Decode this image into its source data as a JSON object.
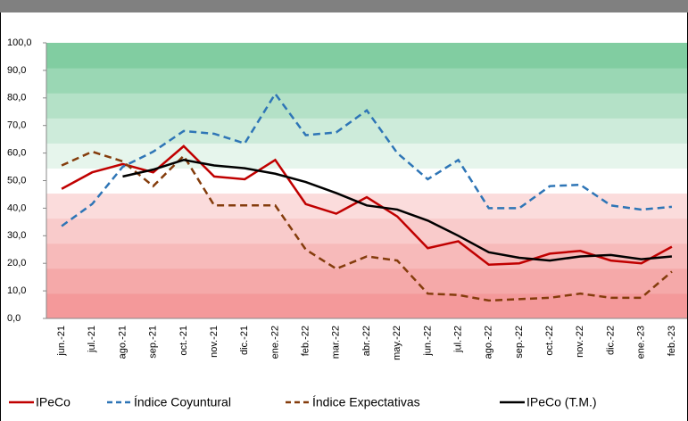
{
  "chart_data": {
    "type": "line",
    "categories": [
      "jun.-21",
      "jul.-21",
      "ago.-21",
      "sep.-21",
      "oct.-21",
      "nov.-21",
      "dic.-21",
      "ene.-22",
      "feb.-22",
      "mar.-22",
      "abr.-22",
      "may.-22",
      "jun.-22",
      "jul.-22",
      "ago.-22",
      "sep.-22",
      "oct.-22",
      "nov.-22",
      "dic.-22",
      "ene.-23",
      "feb.-23"
    ],
    "series": [
      {
        "name": "IPeCo",
        "color": "#c00000",
        "dash": "solid",
        "values": [
          47,
          53,
          56,
          53,
          62.5,
          51.5,
          50.5,
          57.5,
          41.5,
          38,
          44,
          37,
          25.5,
          28,
          19.5,
          20,
          23.5,
          24.5,
          21,
          20,
          26
        ]
      },
      {
        "name": "Índice Coyuntural",
        "color": "#2e75b6",
        "dash": "dashed",
        "values": [
          33.5,
          41.5,
          55,
          60.5,
          68,
          67,
          63.5,
          81.5,
          66.5,
          67.5,
          75.5,
          60,
          50.5,
          57.5,
          40,
          40,
          48,
          48.5,
          41,
          39.5,
          40.5
        ]
      },
      {
        "name": "Índice Expectativas",
        "color": "#843c0c",
        "dash": "dashed",
        "values": [
          55.5,
          60.5,
          57,
          48,
          59,
          41,
          41,
          41,
          25,
          18,
          22.5,
          21,
          9,
          8.5,
          6.5,
          7,
          7.5,
          9,
          7.5,
          7.5,
          17
        ]
      },
      {
        "name": "IPeCo (T.M.)",
        "color": "#000000",
        "dash": "solid",
        "values": [
          null,
          null,
          51.5,
          54,
          57.5,
          55.5,
          54.5,
          52.5,
          49.5,
          45.5,
          41,
          39.5,
          35.5,
          30,
          24,
          22,
          21,
          22.5,
          23,
          21.5,
          22.5
        ]
      }
    ],
    "ylim": [
      0,
      100
    ],
    "yticks": [
      {
        "value": 0,
        "label": "0,0"
      },
      {
        "value": 10,
        "label": "10,0"
      },
      {
        "value": 20,
        "label": "20,0"
      },
      {
        "value": 30,
        "label": "30,0"
      },
      {
        "value": 40,
        "label": "40,0"
      },
      {
        "value": 50,
        "label": "50,0"
      },
      {
        "value": 60,
        "label": "60,0"
      },
      {
        "value": 70,
        "label": "70,0"
      },
      {
        "value": 80,
        "label": "80,0"
      },
      {
        "value": 90,
        "label": "90,0"
      },
      {
        "value": 100,
        "label": "100,0"
      }
    ]
  }
}
